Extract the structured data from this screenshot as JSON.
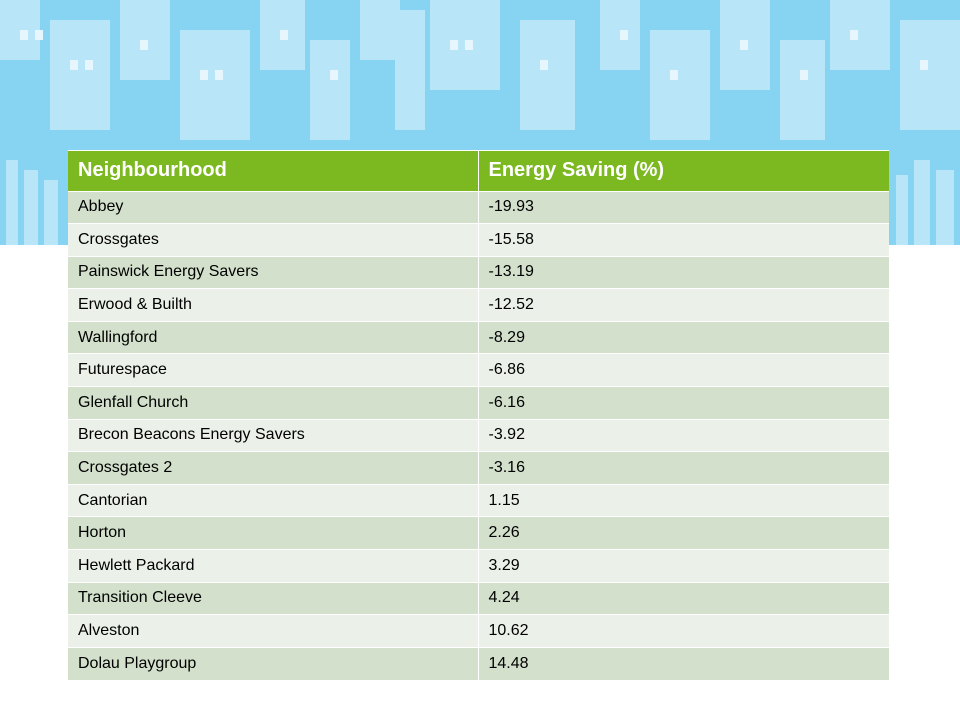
{
  "colors": {
    "sky": "#87d3f2",
    "building_light": "#b9e5f8",
    "window": "#e7f6fd",
    "header_green": "#7cb820",
    "row_dark": "#d3e0cc",
    "row_light": "#ebf1e8"
  },
  "background_icon": "city-skyline",
  "table": {
    "columns": [
      "Neighbourhood",
      "Energy Saving (%)"
    ],
    "rows": [
      [
        "Abbey",
        "-19.93"
      ],
      [
        "Crossgates",
        "-15.58"
      ],
      [
        "Painswick Energy Savers",
        "-13.19"
      ],
      [
        "Erwood & Builth",
        "-12.52"
      ],
      [
        "Wallingford",
        "-8.29"
      ],
      [
        "Futurespace",
        "-6.86"
      ],
      [
        "Glenfall Church",
        "-6.16"
      ],
      [
        "Brecon Beacons Energy Savers",
        "-3.92"
      ],
      [
        "Crossgates 2",
        "-3.16"
      ],
      [
        "Cantorian",
        "1.15"
      ],
      [
        "Horton",
        "2.26"
      ],
      [
        "Hewlett Packard",
        "3.29"
      ],
      [
        "Transition Cleeve",
        "4.24"
      ],
      [
        "Alveston",
        "10.62"
      ],
      [
        "Dolau Playgroup",
        "14.48"
      ]
    ]
  }
}
